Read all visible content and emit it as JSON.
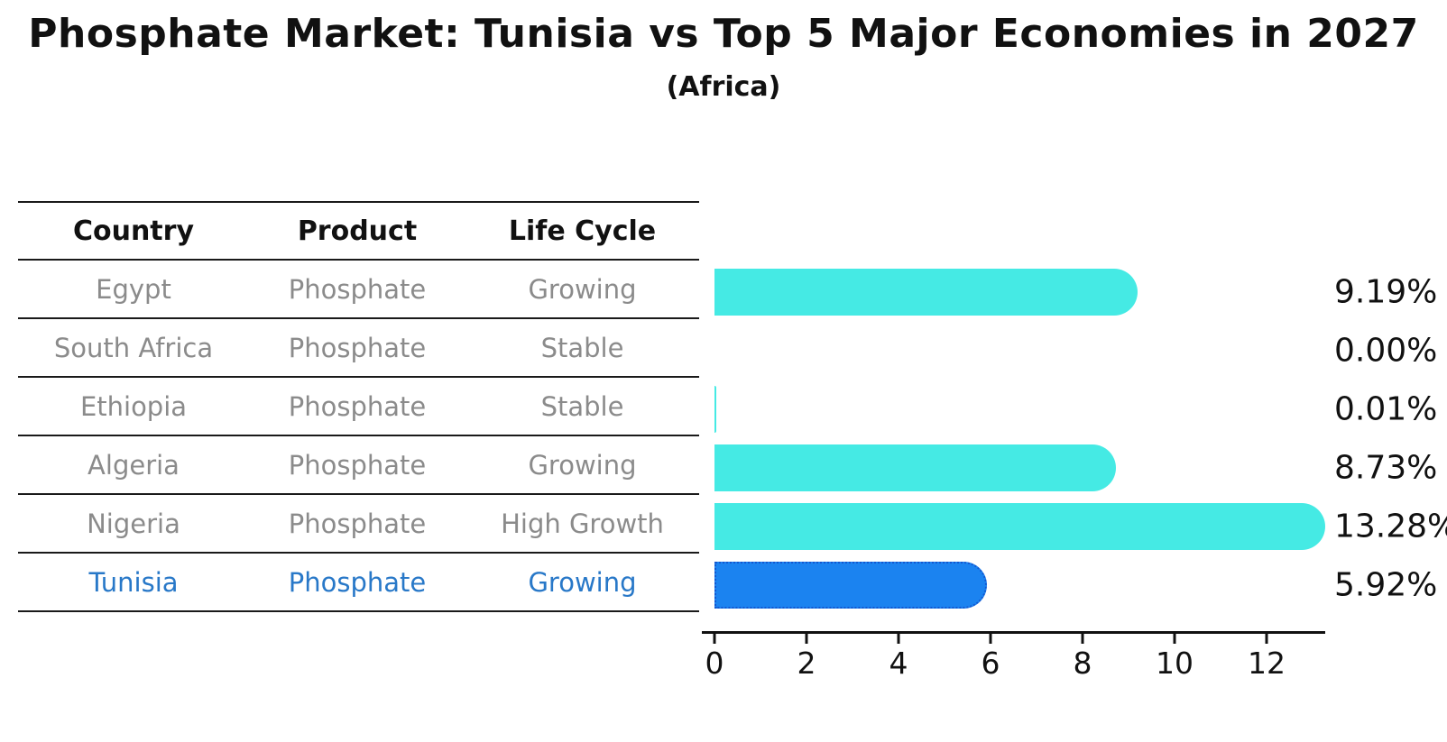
{
  "title": "Phosphate Market: Tunisia vs Top 5 Major Economies in 2027",
  "subtitle": "(Africa)",
  "colors": {
    "bar_default": "#45eae4",
    "bar_highlight": "#1b83f0",
    "bar_highlight_border": "#1357d0",
    "highlight_text": "#2878c8",
    "muted_text": "#8b8b8b",
    "text": "#111111"
  },
  "table": {
    "headers": [
      "Country",
      "Product",
      "Life Cycle"
    ],
    "rows": [
      {
        "country": "Egypt",
        "product": "Phosphate",
        "life_cycle": "Growing",
        "highlighted": false
      },
      {
        "country": "South Africa",
        "product": "Phosphate",
        "life_cycle": "Stable",
        "highlighted": false
      },
      {
        "country": "Ethiopia",
        "product": "Phosphate",
        "life_cycle": "Stable",
        "highlighted": false
      },
      {
        "country": "Algeria",
        "product": "Phosphate",
        "life_cycle": "Growing",
        "highlighted": false
      },
      {
        "country": "Nigeria",
        "product": "Phosphate",
        "life_cycle": "High Growth",
        "highlighted": false
      },
      {
        "country": "Tunisia",
        "product": "Phosphate",
        "life_cycle": "Growing",
        "highlighted": true
      }
    ]
  },
  "chart_data": {
    "type": "bar",
    "orientation": "horizontal",
    "title": "Phosphate Market: Tunisia vs Top 5 Major Economies in 2027",
    "subtitle": "(Africa)",
    "categories": [
      "Egypt",
      "South Africa",
      "Ethiopia",
      "Algeria",
      "Nigeria",
      "Tunisia"
    ],
    "values": [
      9.19,
      0.0,
      0.01,
      8.73,
      13.28,
      5.92
    ],
    "value_labels": [
      "9.19%",
      "0.00%",
      "0.01%",
      "8.73%",
      "13.28%",
      "5.92%"
    ],
    "highlight_index": 5,
    "xlabel": "",
    "ylabel": "",
    "xlim": [
      0,
      13.8
    ],
    "xticks": [
      0,
      2,
      4,
      6,
      8,
      10,
      12
    ],
    "grid": false,
    "legend": false
  }
}
